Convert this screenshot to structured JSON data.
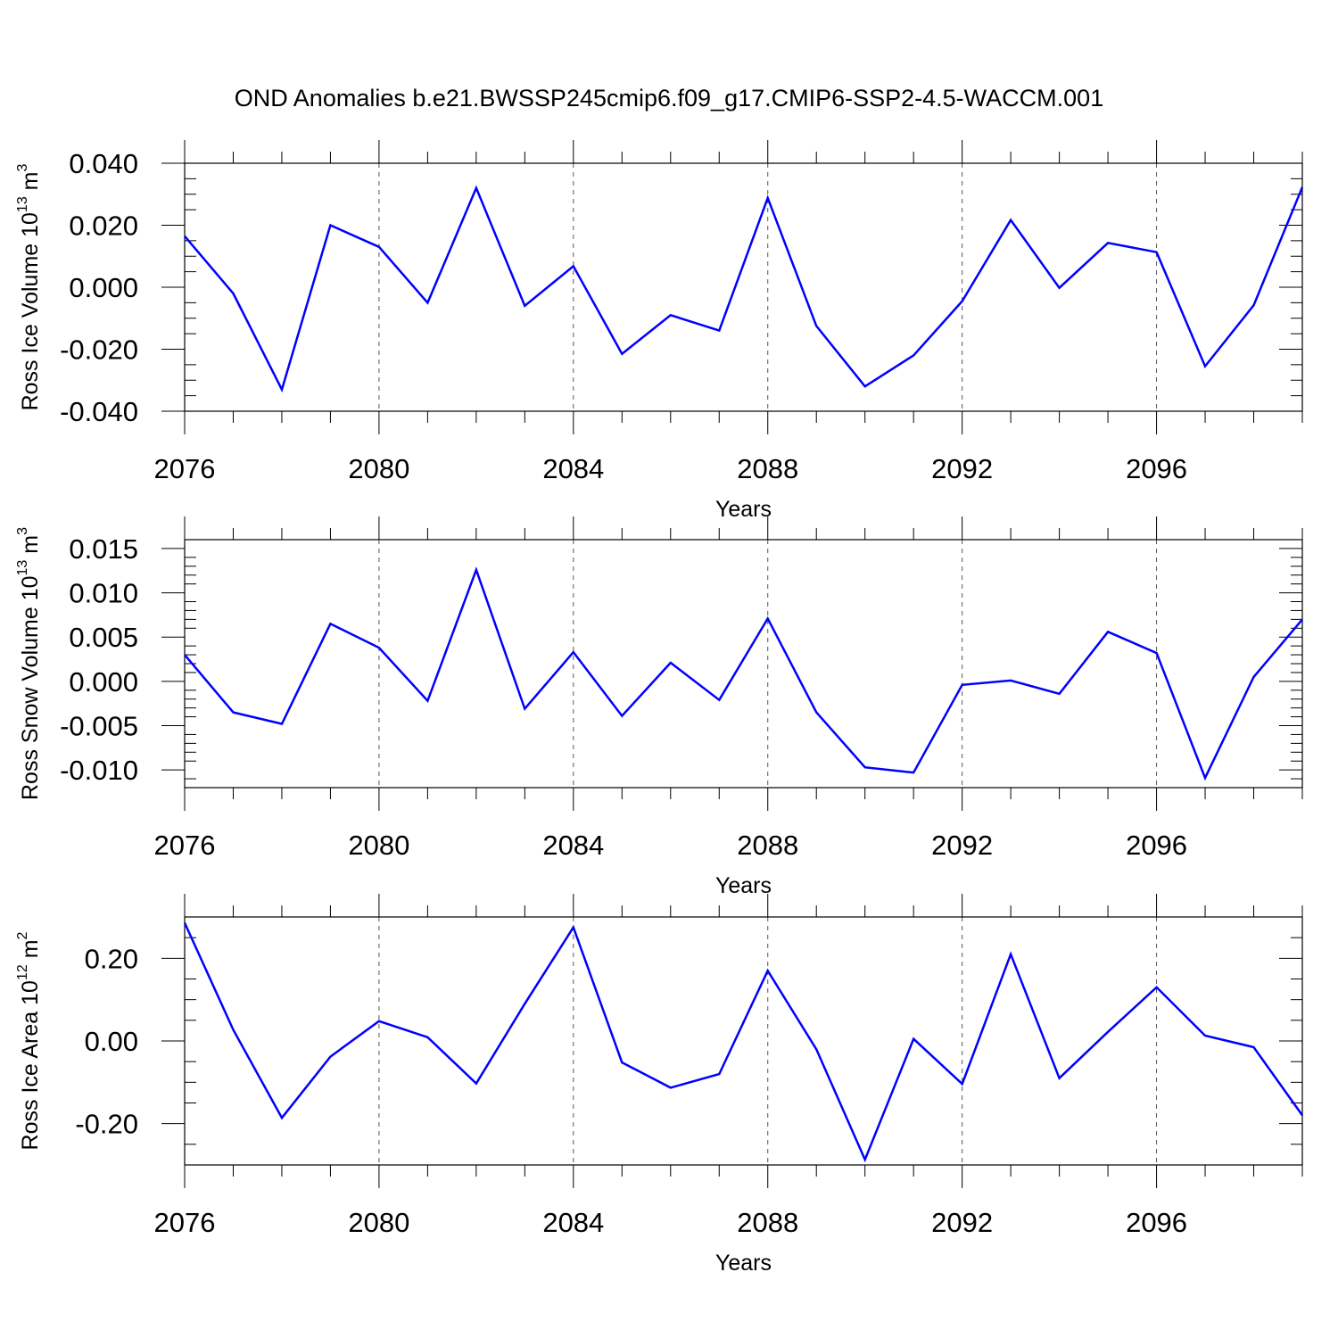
{
  "title": "OND Anomalies b.e21.BWSSP245cmip6.f09_g17.CMIP6-SSP2-4.5-WACCM.001",
  "chart_data": [
    {
      "type": "line",
      "ylabel": "Ross Ice Volume 10",
      "ylabel_exp": "13",
      "ylabel_unit": " m",
      "ylabel_unit_exp": "3",
      "xlabel": "Years",
      "xlim": [
        2076,
        2099
      ],
      "ylim": [
        -0.04,
        0.04
      ],
      "xticks": [
        2076,
        2080,
        2084,
        2088,
        2092,
        2096
      ],
      "xtick_labels": [
        "2076",
        "2080",
        "2084",
        "2088",
        "2092",
        "2096"
      ],
      "yticks": [
        0.04,
        0.02,
        0.0,
        -0.02,
        -0.04
      ],
      "ytick_labels": [
        "0.040",
        "0.020",
        "0.000",
        "-0.020",
        "-0.040"
      ],
      "yminor_step": 0.005,
      "x": [
        2076,
        2077,
        2078,
        2079,
        2080,
        2081,
        2082,
        2083,
        2084,
        2085,
        2086,
        2087,
        2088,
        2089,
        2090,
        2091,
        2092,
        2093,
        2094,
        2095,
        2096,
        2097,
        2098,
        2099
      ],
      "series": [
        {
          "values": [
            0.0165,
            -0.002,
            -0.033,
            0.02,
            0.013,
            -0.005,
            0.032,
            -0.006,
            0.0068,
            -0.0215,
            -0.009,
            -0.014,
            0.0288,
            -0.0125,
            -0.032,
            -0.022,
            -0.0045,
            0.0217,
            -0.0002,
            0.0143,
            0.0113,
            -0.0255,
            -0.0058,
            0.0323
          ],
          "color": "#0000ff"
        }
      ],
      "grid_x": true
    },
    {
      "type": "line",
      "ylabel": "Ross Snow Volume 10",
      "ylabel_exp": "13",
      "ylabel_unit": " m",
      "ylabel_unit_exp": "3",
      "xlabel": "Years",
      "xlim": [
        2076,
        2099
      ],
      "ylim": [
        -0.012,
        0.016
      ],
      "xticks": [
        2076,
        2080,
        2084,
        2088,
        2092,
        2096
      ],
      "xtick_labels": [
        "2076",
        "2080",
        "2084",
        "2088",
        "2092",
        "2096"
      ],
      "yticks": [
        0.015,
        0.01,
        0.005,
        0.0,
        -0.005,
        -0.01
      ],
      "ytick_labels": [
        "0.015",
        "0.010",
        "0.005",
        "0.000",
        "-0.005",
        "-0.010"
      ],
      "yminor_step": 0.001,
      "x": [
        2076,
        2077,
        2078,
        2079,
        2080,
        2081,
        2082,
        2083,
        2084,
        2085,
        2086,
        2087,
        2088,
        2089,
        2090,
        2091,
        2092,
        2093,
        2094,
        2095,
        2096,
        2097,
        2098,
        2099
      ],
      "series": [
        {
          "values": [
            0.003,
            -0.0035,
            -0.0048,
            0.0065,
            0.0038,
            -0.0022,
            0.0126,
            -0.0031,
            0.0033,
            -0.0039,
            0.0021,
            -0.0021,
            0.0071,
            -0.0035,
            -0.0097,
            -0.0103,
            -0.0004,
            0.0001,
            -0.0014,
            0.0056,
            0.0032,
            -0.0109,
            0.0005,
            0.007
          ],
          "color": "#0000ff"
        }
      ],
      "grid_x": true
    },
    {
      "type": "line",
      "ylabel": "Ross Ice Area 10",
      "ylabel_exp": "12",
      "ylabel_unit": " m",
      "ylabel_unit_exp": "2",
      "xlabel": "Years",
      "xlim": [
        2076,
        2099
      ],
      "ylim": [
        -0.3,
        0.3
      ],
      "xticks": [
        2076,
        2080,
        2084,
        2088,
        2092,
        2096
      ],
      "xtick_labels": [
        "2076",
        "2080",
        "2084",
        "2088",
        "2092",
        "2096"
      ],
      "yticks": [
        0.2,
        0.0,
        -0.2
      ],
      "ytick_labels": [
        "0.20",
        "0.00",
        "-0.20"
      ],
      "yminor_step": 0.05,
      "x": [
        2076,
        2077,
        2078,
        2079,
        2080,
        2081,
        2082,
        2083,
        2084,
        2085,
        2086,
        2087,
        2088,
        2089,
        2090,
        2091,
        2092,
        2093,
        2094,
        2095,
        2096,
        2097,
        2098,
        2099
      ],
      "series": [
        {
          "values": [
            0.286,
            0.027,
            -0.186,
            -0.038,
            0.048,
            0.009,
            -0.103,
            0.09,
            0.275,
            -0.052,
            -0.113,
            -0.08,
            0.17,
            -0.02,
            -0.287,
            0.005,
            -0.104,
            0.21,
            -0.09,
            0.022,
            0.13,
            0.013,
            -0.015,
            -0.18
          ],
          "color": "#0000ff"
        }
      ],
      "grid_x": true
    }
  ]
}
